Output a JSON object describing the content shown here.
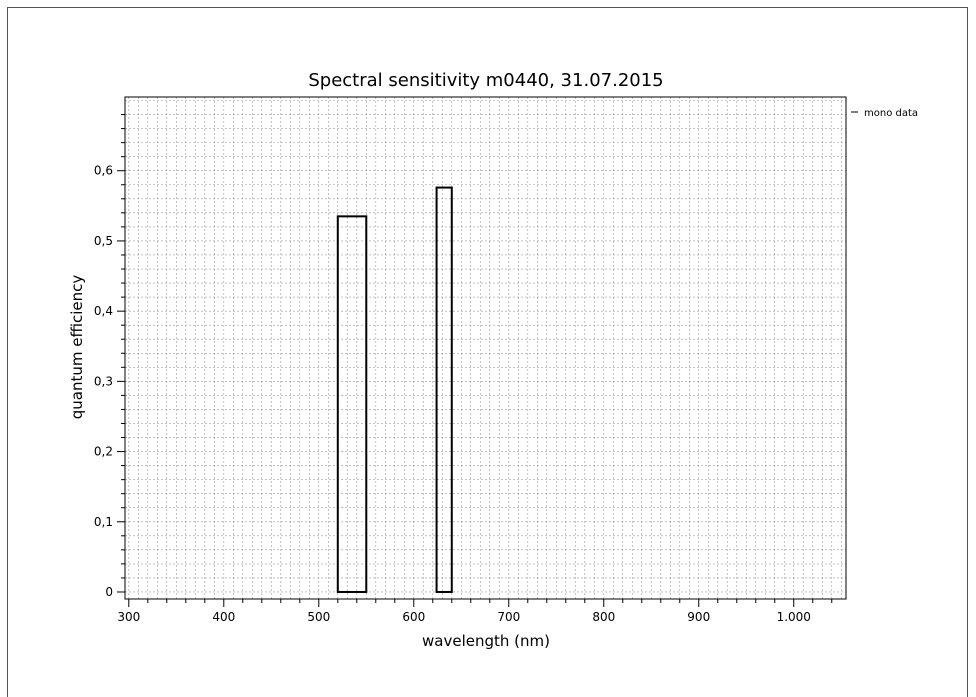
{
  "chart_data": {
    "type": "bar",
    "title": "Spectral sensitivity m0440, 31.07.2015",
    "xlabel": "wavelength (nm)",
    "ylabel": "quantum efficiency",
    "xlim": [
      296,
      1055
    ],
    "ylim": [
      -0.01,
      0.705
    ],
    "x_ticks": [
      300,
      400,
      500,
      600,
      700,
      800,
      900,
      1000
    ],
    "x_tick_labels": [
      "300",
      "400",
      "500",
      "600",
      "700",
      "800",
      "900",
      "1.000"
    ],
    "y_ticks": [
      0,
      0.1,
      0.2,
      0.3,
      0.4,
      0.5,
      0.6
    ],
    "y_tick_labels": [
      "0",
      "0,1",
      "0,2",
      "0,3",
      "0,4",
      "0,5",
      "0,6"
    ],
    "grid": true,
    "legend_position": "top-right",
    "series": [
      {
        "name": "mono data",
        "bars": [
          {
            "x_start": 520,
            "x_end": 550,
            "value": 0.535
          },
          {
            "x_start": 624,
            "x_end": 640,
            "value": 0.576
          }
        ]
      }
    ]
  }
}
